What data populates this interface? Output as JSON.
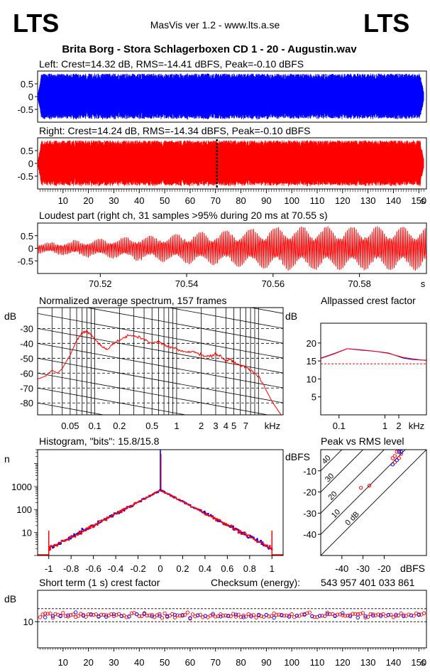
{
  "header": {
    "logo_left": "LTS",
    "logo_right": "LTS",
    "app_version": "MasVis ver 1.2 - www.lts.a.se",
    "file_title": "Brita Borg - Stora Schlagerboxen CD 1 - 20 - Augustin.wav"
  },
  "colors": {
    "left": "#0000ff",
    "right": "#ff0000",
    "grid": "#000000"
  },
  "chart_data": [
    {
      "id": "waveform-left",
      "type": "line",
      "title": "Left: Crest=14.32 dB, RMS=-14.41 dBFS, Peak=-0.10 dBFS",
      "y_ticks": [
        "0.5",
        "0",
        "-0.5"
      ],
      "y_tick_values": [
        0.5,
        0,
        -0.5
      ],
      "ylim": [
        -1,
        1
      ],
      "xlim": [
        0,
        153
      ],
      "envelope": {
        "fade_in_end_s": 1.5,
        "fade_out_start_s": 150.5,
        "typical_peak": 0.9,
        "min_peak": 0.55
      }
    },
    {
      "id": "waveform-right",
      "type": "line",
      "title": "Right: Crest=14.24 dB, RMS=-14.34 dBFS, Peak=-0.10 dBFS",
      "y_ticks": [
        "0.5",
        "0",
        "-0.5"
      ],
      "y_tick_values": [
        0.5,
        0,
        -0.5
      ],
      "ylim": [
        -1,
        1
      ],
      "xlim": [
        0,
        153
      ],
      "x_ticks": [
        "10",
        "20",
        "30",
        "40",
        "50",
        "60",
        "70",
        "80",
        "90",
        "100",
        "110",
        "120",
        "130",
        "140",
        "150"
      ],
      "x_tick_values": [
        10,
        20,
        30,
        40,
        50,
        60,
        70,
        80,
        90,
        100,
        110,
        120,
        130,
        140,
        150
      ],
      "x_unit": "s",
      "loudest_marker_s": 70.55
    },
    {
      "id": "loudest-part",
      "type": "line",
      "title": "Loudest part (right ch, 31 samples >95% during 20 ms at 70.55 s)",
      "y_ticks": [
        "0.5",
        "0",
        "-0.5"
      ],
      "y_tick_values": [
        0.5,
        0,
        -0.5
      ],
      "ylim": [
        -1,
        1
      ],
      "xlim": [
        70.5055,
        70.5955
      ],
      "x_ticks": [
        "70.52",
        "70.54",
        "70.56",
        "70.58"
      ],
      "x_tick_values": [
        70.52,
        70.54,
        70.56,
        70.58
      ],
      "x_unit": "s",
      "amplitude_start": 0.2,
      "amplitude_end": 0.85,
      "cycles": 220
    },
    {
      "id": "average-spectrum",
      "type": "line",
      "title": "Normalized average spectrum, 157 frames",
      "ylabel": "dB",
      "y_ticks": [
        "-30",
        "-40",
        "-50",
        "-60",
        "-70",
        "-80"
      ],
      "y_tick_values": [
        -30,
        -40,
        -50,
        -60,
        -70,
        -80
      ],
      "ylim": [
        -88,
        -16
      ],
      "xscale": "log",
      "xlim": [
        0.02,
        20
      ],
      "x_ticks": [
        "0.05",
        "0.1",
        "0.2",
        "0.5",
        "1",
        "2",
        "3",
        "4",
        "5",
        "7"
      ],
      "x_tick_values": [
        0.05,
        0.1,
        0.2,
        0.5,
        1,
        2,
        3,
        4,
        5,
        7
      ],
      "x_unit": "kHz",
      "vertical_gridlines_khz": [
        0.03,
        0.04,
        0.05,
        0.06,
        0.07,
        0.08,
        0.09,
        0.1,
        0.2,
        0.3,
        0.4,
        0.5,
        0.6,
        0.7,
        0.8,
        0.9,
        1,
        2,
        3,
        4,
        5,
        6,
        7,
        8,
        9,
        10
      ],
      "series": [
        {
          "color": "#ff0000",
          "x": [
            0.02,
            0.025,
            0.03,
            0.035,
            0.04,
            0.045,
            0.05,
            0.06,
            0.07,
            0.08,
            0.09,
            0.1,
            0.12,
            0.14,
            0.17,
            0.2,
            0.25,
            0.3,
            0.4,
            0.5,
            0.6,
            0.7,
            0.8,
            1,
            1.3,
            1.6,
            2,
            2.5,
            3,
            3.5,
            4,
            4.5,
            5,
            6,
            7,
            8,
            10,
            12,
            15,
            20
          ],
          "y": [
            -64,
            -62,
            -58,
            -60,
            -57,
            -52,
            -48,
            -38,
            -33,
            -32,
            -34,
            -37,
            -42,
            -44,
            -40,
            -38,
            -35,
            -35,
            -37,
            -40,
            -39,
            -41,
            -42,
            -44,
            -46,
            -45,
            -48,
            -49,
            -47,
            -49,
            -52,
            -50,
            -53,
            -55,
            -56,
            -58,
            -62,
            -70,
            -80,
            -90
          ]
        }
      ]
    },
    {
      "id": "allpassed-crest",
      "type": "line",
      "title": "Allpassed crest factor",
      "ylabel": "dB",
      "y_ticks": [
        "20",
        "15",
        "10",
        "5"
      ],
      "y_tick_values": [
        20,
        15,
        10,
        5
      ],
      "ylim": [
        0,
        25.5
      ],
      "xscale": "log",
      "xlim": [
        0.04,
        8
      ],
      "x_ticks": [
        "0.1",
        "1",
        "2"
      ],
      "x_tick_values": [
        0.1,
        1,
        2
      ],
      "x_unit": "kHz",
      "reference_line": 14.2,
      "series": [
        {
          "color": "#0000ff",
          "x": [
            0.04,
            0.08,
            0.15,
            0.3,
            0.6,
            1.2,
            2.5,
            4,
            8
          ],
          "y": [
            15.8,
            17.1,
            18.4,
            18.0,
            17.7,
            17.2,
            15.8,
            15.4,
            15.2
          ]
        },
        {
          "color": "#ff0000",
          "x": [
            0.04,
            0.08,
            0.15,
            0.3,
            0.6,
            1.2,
            2.5,
            4,
            8
          ],
          "y": [
            15.7,
            17.0,
            18.4,
            18.1,
            17.7,
            17.1,
            16.0,
            15.6,
            15.1
          ]
        }
      ]
    },
    {
      "id": "histogram",
      "type": "bar",
      "title": "Histogram, \"bits\": 15.8/15.8",
      "ylabel": "n",
      "yscale": "log",
      "ylim": [
        1,
        40000
      ],
      "y_ticks": [
        "1000",
        "100",
        "10"
      ],
      "y_tick_values": [
        1000,
        100,
        10
      ],
      "xlim": [
        -1.1,
        1.1
      ],
      "x_ticks": [
        "-1",
        "-0.8",
        "-0.6",
        "-0.4",
        "-0.2",
        "0",
        "0.2",
        "0.4",
        "0.6",
        "0.8",
        "1"
      ],
      "x_tick_values": [
        -1,
        -0.8,
        -0.6,
        -0.4,
        -0.2,
        0,
        0.2,
        0.4,
        0.6,
        0.8,
        1
      ],
      "peak_at_zero": 700,
      "clip_count_at_edges": 12
    },
    {
      "id": "peak-vs-rms",
      "type": "scatter",
      "title": "Peak vs RMS level",
      "xlabel": "dBFS",
      "ylabel": "dBFS",
      "xlim": [
        -50,
        0
      ],
      "ylim": [
        -50,
        0
      ],
      "x_ticks": [
        "-40",
        "-30",
        "-20"
      ],
      "x_tick_values": [
        -40,
        -30,
        -20
      ],
      "y_ticks": [
        "-10",
        "-20",
        "-30",
        "-40"
      ],
      "y_tick_values": [
        -10,
        -20,
        -30,
        -40
      ],
      "diagonal_labels": [
        "0 dB",
        "10",
        "20",
        "30",
        "40"
      ],
      "diagonal_offsets": [
        0,
        10,
        20,
        30,
        40
      ],
      "points": [
        {
          "rms": -27,
          "peak": -17,
          "color": "#ff0000"
        },
        {
          "rms": -31,
          "peak": -18,
          "color": "#ff0000"
        },
        {
          "rms": -16,
          "peak": -7,
          "color": "#0000ff"
        },
        {
          "rms": -15,
          "peak": -6,
          "color": "#ff0000"
        },
        {
          "rms": -13,
          "peak": -4,
          "color": "#ff0000"
        },
        {
          "rms": -14,
          "peak": -5,
          "color": "#0000ff"
        },
        {
          "rms": -12,
          "peak": -2,
          "color": "#ff0000"
        },
        {
          "rms": -13,
          "peak": -1,
          "color": "#0000ff"
        },
        {
          "rms": -15,
          "peak": -3,
          "color": "#ff0000"
        },
        {
          "rms": -14,
          "peak": -1,
          "color": "#ff0000"
        },
        {
          "rms": -12,
          "peak": -1,
          "color": "#0000ff"
        },
        {
          "rms": -16,
          "peak": -4,
          "color": "#ff0000"
        }
      ]
    },
    {
      "id": "short-term-crest",
      "type": "scatter",
      "title": "Short term (1 s) crest factor",
      "checksum_label": "Checksum (energy):",
      "checksum_value": "543 957 401 033 861",
      "ylabel": "dB",
      "y_ticks": [
        "10"
      ],
      "y_tick_values": [
        10
      ],
      "ylim": [
        0,
        22
      ],
      "dashed_lines": [
        10,
        15
      ],
      "xlim": [
        0,
        153
      ],
      "x_ticks": [
        "10",
        "20",
        "30",
        "40",
        "50",
        "60",
        "70",
        "80",
        "90",
        "100",
        "110",
        "120",
        "130",
        "140",
        "150"
      ],
      "x_tick_values": [
        10,
        20,
        30,
        40,
        50,
        60,
        70,
        80,
        90,
        100,
        110,
        120,
        130,
        140,
        150
      ],
      "x_unit": "s",
      "series": [
        {
          "name_color": "#ff0000",
          "mean": 12.5,
          "spread": 1.5
        },
        {
          "name_color": "#0000ff",
          "mean": 12.3,
          "spread": 1.3
        }
      ]
    }
  ]
}
